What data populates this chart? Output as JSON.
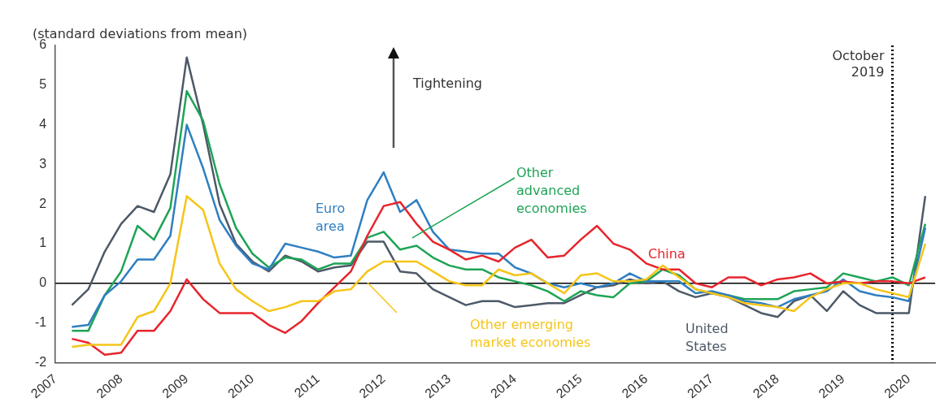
{
  "chart_data": {
    "type": "line",
    "ylabel": "(standard deviations from mean)",
    "x": [
      2007.25,
      2007.5,
      2007.75,
      2008,
      2008.25,
      2008.5,
      2008.75,
      2009,
      2009.25,
      2009.5,
      2009.75,
      2010,
      2010.25,
      2010.5,
      2010.75,
      2011,
      2011.25,
      2011.5,
      2011.75,
      2012,
      2012.25,
      2012.5,
      2012.75,
      2013,
      2013.25,
      2013.5,
      2013.75,
      2014,
      2014.25,
      2014.5,
      2014.75,
      2015,
      2015.25,
      2015.5,
      2015.75,
      2016,
      2016.25,
      2016.5,
      2016.75,
      2017,
      2017.25,
      2017.5,
      2017.75,
      2018,
      2018.25,
      2018.5,
      2018.75,
      2019,
      2019.25,
      2019.5,
      2019.75,
      2020,
      2020.25
    ],
    "series": [
      {
        "name": "Other emerging market economies",
        "color": "#f5c518",
        "values": [
          -1.6,
          -1.55,
          -1.55,
          -1.55,
          -0.85,
          -0.7,
          0.0,
          2.2,
          1.85,
          0.5,
          -0.15,
          -0.45,
          -0.7,
          -0.6,
          -0.45,
          -0.45,
          -0.2,
          -0.15,
          0.3,
          0.55,
          0.55,
          0.55,
          0.3,
          0.05,
          -0.05,
          -0.05,
          0.35,
          0.2,
          0.25,
          0.0,
          -0.25,
          0.2,
          0.25,
          0.05,
          0.05,
          0.1,
          0.45,
          0.15,
          -0.15,
          -0.25,
          -0.35,
          -0.5,
          -0.55,
          -0.6,
          -0.7,
          -0.35,
          -0.15,
          0.0,
          0.0,
          -0.15,
          -0.25,
          -0.35,
          1.0
        ]
      },
      {
        "name": "China",
        "color": "#e8242c",
        "values": [
          -1.4,
          -1.5,
          -1.8,
          -1.75,
          -1.2,
          -1.2,
          -0.7,
          0.1,
          -0.4,
          -0.75,
          -0.75,
          -0.75,
          -1.05,
          -1.25,
          -0.95,
          -0.5,
          -0.1,
          0.3,
          1.2,
          1.95,
          2.05,
          1.5,
          1.05,
          0.85,
          0.6,
          0.7,
          0.55,
          0.9,
          1.1,
          0.65,
          0.7,
          1.1,
          1.45,
          1.0,
          0.85,
          0.5,
          0.35,
          0.35,
          0.0,
          -0.1,
          0.15,
          0.15,
          -0.05,
          0.1,
          0.15,
          0.25,
          0.0,
          0.05,
          0.0,
          0.05,
          0.05,
          0.0,
          0.15
        ]
      },
      {
        "name": "Euro area",
        "color": "#2f7fc1",
        "values": [
          -1.1,
          -1.05,
          -0.3,
          0.05,
          0.6,
          0.6,
          1.2,
          4.0,
          2.9,
          1.6,
          0.95,
          0.5,
          0.35,
          1.0,
          0.9,
          0.8,
          0.65,
          0.7,
          2.1,
          2.8,
          1.8,
          2.1,
          1.3,
          0.85,
          0.8,
          0.75,
          0.75,
          0.4,
          0.25,
          0.0,
          -0.1,
          0.0,
          -0.1,
          0.0,
          0.25,
          0.05,
          0.05,
          0.05,
          -0.25,
          -0.2,
          -0.3,
          -0.45,
          -0.5,
          -0.6,
          -0.4,
          -0.3,
          -0.2,
          0.1,
          -0.2,
          -0.3,
          -0.35,
          -0.45,
          1.4
        ]
      },
      {
        "name": "Other advanced economies",
        "color": "#1ea456",
        "values": [
          -1.2,
          -1.2,
          -0.3,
          0.3,
          1.45,
          1.1,
          1.9,
          4.85,
          4.1,
          2.5,
          1.4,
          0.75,
          0.4,
          0.65,
          0.6,
          0.35,
          0.5,
          0.5,
          1.15,
          1.3,
          0.85,
          0.95,
          0.65,
          0.45,
          0.35,
          0.35,
          0.15,
          0.05,
          -0.05,
          -0.2,
          -0.45,
          -0.2,
          -0.3,
          -0.35,
          0.0,
          0.05,
          0.35,
          0.2,
          -0.15,
          -0.25,
          -0.3,
          -0.4,
          -0.4,
          -0.4,
          -0.2,
          -0.15,
          -0.1,
          0.25,
          0.15,
          0.05,
          0.15,
          -0.05,
          1.5
        ]
      },
      {
        "name": "United States",
        "color": "#4d5968",
        "values": [
          -0.55,
          -0.15,
          0.8,
          1.5,
          1.95,
          1.8,
          2.75,
          5.7,
          4.0,
          2.0,
          1.0,
          0.55,
          0.3,
          0.7,
          0.55,
          0.3,
          0.4,
          0.45,
          1.05,
          1.05,
          0.3,
          0.25,
          -0.15,
          -0.35,
          -0.55,
          -0.45,
          -0.45,
          -0.6,
          -0.55,
          -0.5,
          -0.5,
          -0.3,
          -0.1,
          -0.05,
          0.1,
          0.0,
          0.05,
          -0.2,
          -0.35,
          -0.25,
          -0.35,
          -0.55,
          -0.75,
          -0.85,
          -0.45,
          -0.3,
          -0.7,
          -0.2,
          -0.55,
          -0.75,
          -0.75,
          -0.75,
          2.2
        ]
      }
    ],
    "xlim": [
      2007,
      2020.4
    ],
    "xticks": [
      2007,
      2008,
      2009,
      2010,
      2011,
      2012,
      2013,
      2014,
      2015,
      2016,
      2017,
      2018,
      2019,
      2020
    ],
    "ylim": [
      -2,
      6
    ],
    "yticks": [
      -2,
      -1,
      0,
      1,
      2,
      3,
      4,
      5,
      6
    ],
    "ref_lines": [
      {
        "axis": "y",
        "value": 0,
        "color": "#000000",
        "line_style": "solid"
      },
      {
        "axis": "x",
        "value": 2019.75,
        "label": "October 2019",
        "color": "#000000",
        "line_style": "dotted"
      }
    ],
    "annotations": [
      "Tightening"
    ],
    "grid": false,
    "legend": false,
    "marker": "none",
    "line_style": "solid"
  }
}
